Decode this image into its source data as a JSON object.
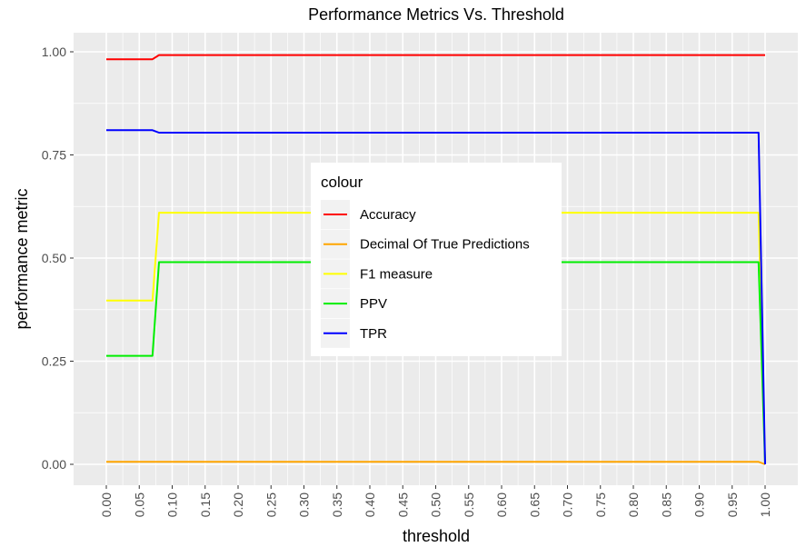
{
  "chart_data": {
    "type": "line",
    "title": "Performance Metrics Vs. Threshold",
    "xlabel": "threshold",
    "ylabel": "performance metric",
    "xlim": [
      0,
      1
    ],
    "ylim": [
      0,
      1
    ],
    "x_ticks": [
      "0.00",
      "0.05",
      "0.10",
      "0.15",
      "0.20",
      "0.25",
      "0.30",
      "0.35",
      "0.40",
      "0.45",
      "0.50",
      "0.55",
      "0.60",
      "0.65",
      "0.70",
      "0.75",
      "0.80",
      "0.85",
      "0.90",
      "0.95",
      "1.00"
    ],
    "y_ticks": [
      "0.00",
      "0.25",
      "0.50",
      "0.75",
      "1.00"
    ],
    "grid": true,
    "legend": {
      "title": "colour",
      "placement": "inside-center"
    },
    "series": [
      {
        "name": "Accuracy",
        "color": "#ff0000",
        "points": [
          [
            0.0,
            0.982
          ],
          [
            0.07,
            0.982
          ],
          [
            0.08,
            0.992
          ],
          [
            0.99,
            0.992
          ],
          [
            1.0,
            0.992
          ]
        ]
      },
      {
        "name": "Decimal Of True Predictions",
        "color": "#ffa500",
        "points": [
          [
            0.0,
            0.006
          ],
          [
            0.99,
            0.006
          ],
          [
            1.0,
            0.0
          ]
        ]
      },
      {
        "name": "F1 measure",
        "color": "#ffff00",
        "points": [
          [
            0.0,
            0.397
          ],
          [
            0.07,
            0.397
          ],
          [
            0.08,
            0.61
          ],
          [
            0.99,
            0.61
          ],
          [
            1.0,
            0.0
          ]
        ]
      },
      {
        "name": "PPV",
        "color": "#00ee00",
        "points": [
          [
            0.0,
            0.263
          ],
          [
            0.07,
            0.263
          ],
          [
            0.08,
            0.49
          ],
          [
            0.99,
            0.49
          ],
          [
            1.0,
            0.0
          ]
        ]
      },
      {
        "name": "TPR",
        "color": "#0000ff",
        "points": [
          [
            0.0,
            0.81
          ],
          [
            0.07,
            0.81
          ],
          [
            0.08,
            0.804
          ],
          [
            0.99,
            0.804
          ],
          [
            1.0,
            0.0
          ]
        ]
      }
    ]
  }
}
